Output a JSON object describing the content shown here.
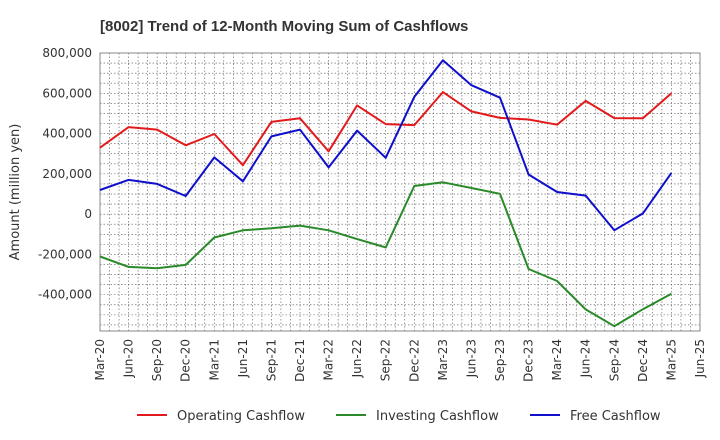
{
  "chart_data": {
    "type": "line",
    "title": "[8002]  Trend of 12-Month Moving Sum of Cashflows",
    "xlabel": "",
    "ylabel": "Amount (million yen)",
    "ylim": [
      -580000,
      800000
    ],
    "yticks": [
      -400000,
      -200000,
      0,
      200000,
      400000,
      600000,
      800000
    ],
    "ytick_labels": [
      "-400,000",
      "-200,000",
      "0",
      "200,000",
      "400,000",
      "600,000",
      "800,000"
    ],
    "x": [
      "Mar-20",
      "Jun-20",
      "Sep-20",
      "Dec-20",
      "Mar-21",
      "Jun-21",
      "Sep-21",
      "Dec-21",
      "Mar-22",
      "Jun-22",
      "Sep-22",
      "Dec-22",
      "Mar-23",
      "Jun-23",
      "Sep-23",
      "Dec-23",
      "Mar-24",
      "Jun-24",
      "Sep-24",
      "Dec-24",
      "Mar-25",
      "Jun-25"
    ],
    "grid": true,
    "legend_position": "bottom",
    "series": [
      {
        "name": "Operating Cashflow",
        "color": "#e31a1c",
        "values": [
          330000,
          432000,
          420000,
          342000,
          398000,
          243000,
          458000,
          476000,
          312000,
          540000,
          447000,
          442000,
          606000,
          510000,
          478000,
          470000,
          444000,
          562000,
          477000,
          476000,
          600000,
          null
        ]
      },
      {
        "name": "Investing Cashflow",
        "color": "#2a8a2a",
        "values": [
          -210000,
          -262000,
          -269000,
          -252000,
          -116000,
          -80000,
          -70000,
          -57000,
          -80000,
          -124000,
          -165000,
          140000,
          158000,
          130000,
          101000,
          -272000,
          -332000,
          -473000,
          -556000,
          -472000,
          -395000,
          null
        ]
      },
      {
        "name": "Free Cashflow",
        "color": "#1010cc",
        "values": [
          120000,
          170000,
          150000,
          90000,
          282000,
          163000,
          386000,
          420000,
          232000,
          415000,
          280000,
          582000,
          764000,
          640000,
          578000,
          197000,
          110000,
          92000,
          -80000,
          4000,
          205000,
          null
        ]
      }
    ]
  }
}
